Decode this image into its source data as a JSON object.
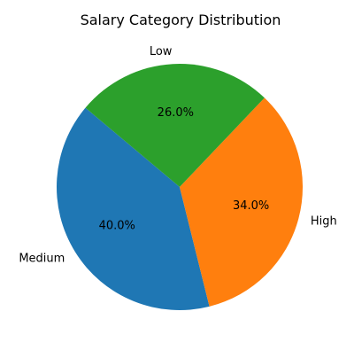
{
  "chart_data": {
    "type": "pie",
    "title": "Salary Category Distribution",
    "categories": [
      "Medium",
      "High",
      "Low"
    ],
    "values": [
      40.0,
      34.0,
      26.0
    ],
    "percent_labels": [
      "40.0%",
      "34.0%",
      "26.0%"
    ],
    "colors": [
      "#1f77b4",
      "#ff7f0e",
      "#2ca02c"
    ],
    "start_angle_deg": 140,
    "direction": "counterclockwise",
    "legend": "none"
  }
}
